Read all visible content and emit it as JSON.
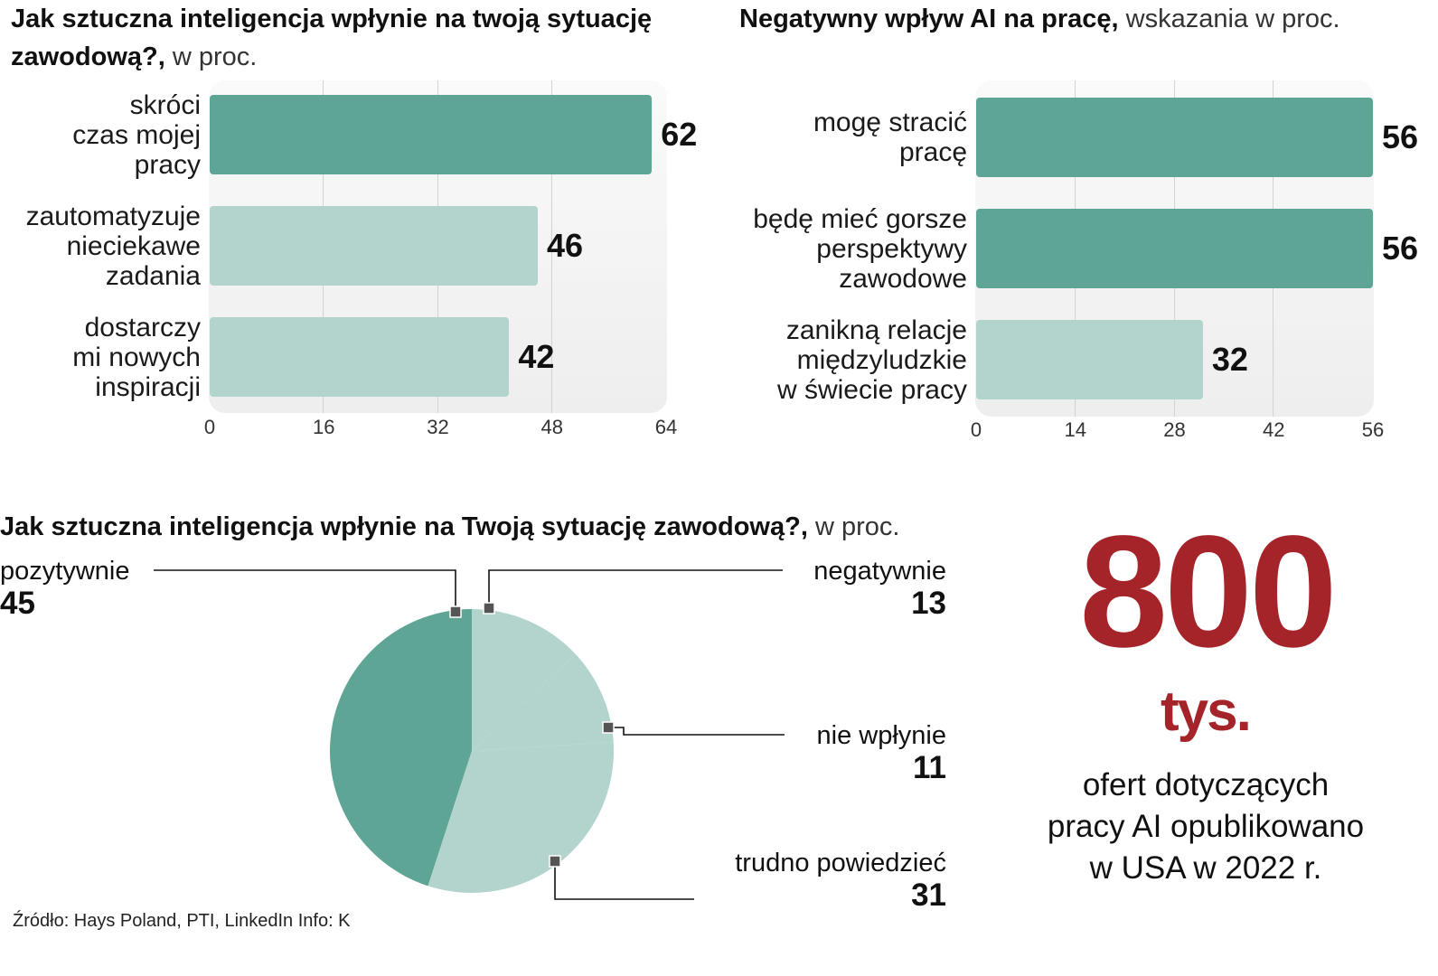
{
  "chart_data": [
    {
      "type": "bar",
      "orientation": "horizontal",
      "title": "Jak sztuczna inteligencja wpłynie na twoją sytuację zawodową?,",
      "title_suffix": "w proc.",
      "categories": [
        "skróci\nczas mojej\npracy",
        "zautomatyzuje\nnieciekawe\nzadania",
        "dostarczy\nmi nowych\ninspiracji"
      ],
      "values": [
        62,
        46,
        42
      ],
      "value_labels": [
        "62",
        "46",
        "42"
      ],
      "bar_colors": [
        "#5ea596",
        "#b2d4cd",
        "#b2d4cd"
      ],
      "xlim": [
        0,
        64
      ],
      "xticks": [
        "0",
        "16",
        "32",
        "48",
        "64"
      ],
      "grid": true
    },
    {
      "type": "bar",
      "orientation": "horizontal",
      "title": "Negatywny wpływ AI na pracę,",
      "title_suffix": "wskazania w proc.",
      "categories": [
        "mogę stracić\npracę",
        "będę mieć gorsze\nperspektywy\nzawodowe",
        "zanikną relacje\nmiędzyludzkie\nw świecie pracy"
      ],
      "values": [
        56,
        56,
        32
      ],
      "value_labels": [
        "56",
        "56",
        "32"
      ],
      "bar_colors": [
        "#5ea596",
        "#5ea596",
        "#b2d4cd"
      ],
      "xlim": [
        0,
        56
      ],
      "xticks": [
        "0",
        "14",
        "28",
        "42",
        "56"
      ],
      "grid": true
    },
    {
      "type": "pie",
      "title": "Jak sztuczna inteligencja wpłynie na Twoją sytuację zawodową?,",
      "title_suffix": "w proc.",
      "categories": [
        "pozytywnie",
        "negatywnie",
        "nie wpłynie",
        "trudno powiedzieć"
      ],
      "values": [
        45,
        13,
        11,
        31
      ],
      "value_labels": [
        "45",
        "13",
        "11",
        "31"
      ],
      "colors": [
        "#5ea596",
        "#b2d4cd",
        "#b2d4cd",
        "#b2d4cd"
      ]
    }
  ],
  "stat": {
    "number": "800",
    "unit": "tys.",
    "description": "ofert dotyczących\npracy AI opublikowano\nw USA w 2022 r.",
    "color": "#a5242a"
  },
  "source": "Źródło: Hays Poland, PTI, LinkedIn  Info: K"
}
